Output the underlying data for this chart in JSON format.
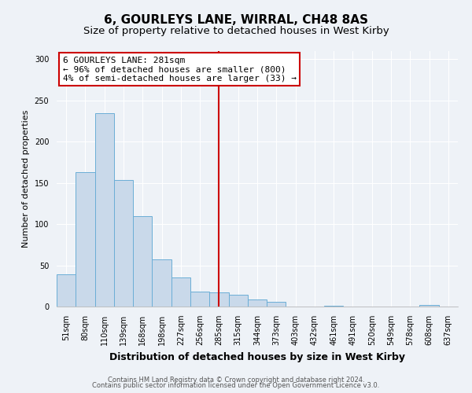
{
  "title": "6, GOURLEYS LANE, WIRRAL, CH48 8AS",
  "subtitle": "Size of property relative to detached houses in West Kirby",
  "xlabel": "Distribution of detached houses by size in West Kirby",
  "ylabel": "Number of detached properties",
  "categories": [
    "51sqm",
    "80sqm",
    "110sqm",
    "139sqm",
    "168sqm",
    "198sqm",
    "227sqm",
    "256sqm",
    "285sqm",
    "315sqm",
    "344sqm",
    "373sqm",
    "403sqm",
    "432sqm",
    "461sqm",
    "491sqm",
    "520sqm",
    "549sqm",
    "578sqm",
    "608sqm",
    "637sqm"
  ],
  "values": [
    39,
    163,
    235,
    154,
    110,
    57,
    35,
    18,
    17,
    14,
    9,
    6,
    0,
    0,
    1,
    0,
    0,
    0,
    0,
    2,
    0
  ],
  "bar_color": "#c9d9ea",
  "bar_edge_color": "#6baed6",
  "vline_x": 8,
  "vline_color": "#cc0000",
  "annotation_title": "6 GOURLEYS LANE: 281sqm",
  "annotation_line1": "← 96% of detached houses are smaller (800)",
  "annotation_line2": "4% of semi-detached houses are larger (33) →",
  "annotation_box_facecolor": "#ffffff",
  "annotation_box_edgecolor": "#cc0000",
  "ylim": [
    0,
    310
  ],
  "yticks": [
    0,
    50,
    100,
    150,
    200,
    250,
    300
  ],
  "footer1": "Contains HM Land Registry data © Crown copyright and database right 2024.",
  "footer2": "Contains public sector information licensed under the Open Government Licence v3.0.",
  "background_color": "#eef2f7",
  "grid_color": "#ffffff",
  "title_fontsize": 11,
  "subtitle_fontsize": 9.5,
  "axis_label_fontsize": 8,
  "tick_fontsize": 7,
  "annotation_fontsize": 8,
  "footer_fontsize": 6
}
